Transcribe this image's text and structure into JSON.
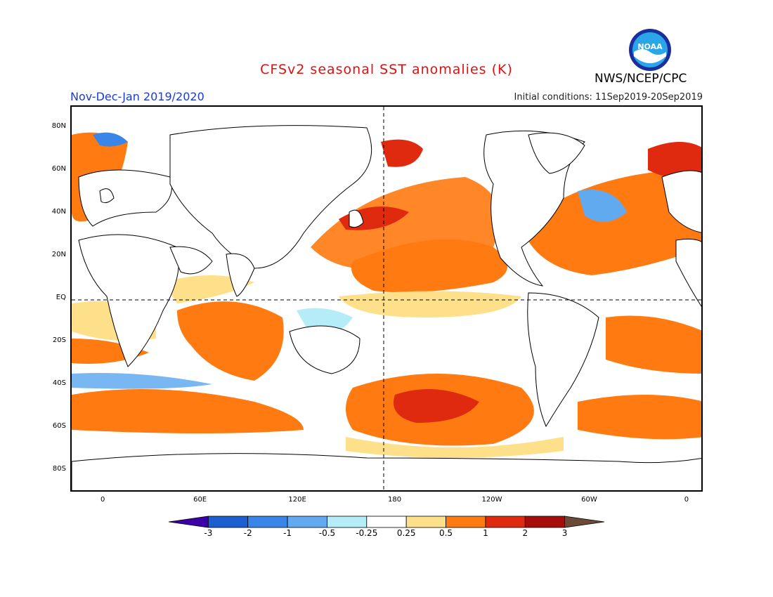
{
  "title": "CFSv2 seasonal SST anomalies (K)",
  "season": "Nov-Dec-Jan 2019/2020",
  "initial_conditions": "Initial conditions: 11Sep2019-20Sep2019",
  "agency": "NWS/NCEP/CPC",
  "logo_text": "NOAA",
  "lat_ticks": [
    {
      "label": "80N",
      "lat": 80
    },
    {
      "label": "60N",
      "lat": 60
    },
    {
      "label": "40N",
      "lat": 40
    },
    {
      "label": "20N",
      "lat": 20
    },
    {
      "label": "EQ",
      "lat": 0
    },
    {
      "label": "20S",
      "lat": -20
    },
    {
      "label": "40S",
      "lat": -40
    },
    {
      "label": "60S",
      "lat": -60
    },
    {
      "label": "80S",
      "lat": -80
    }
  ],
  "lon_ticks": [
    {
      "label": "0",
      "lon": 0
    },
    {
      "label": "60E",
      "lon": 60
    },
    {
      "label": "120E",
      "lon": 120
    },
    {
      "label": "180",
      "lon": 180
    },
    {
      "label": "120W",
      "lon": 240
    },
    {
      "label": "60W",
      "lon": 300
    },
    {
      "label": "0",
      "lon": 360
    }
  ],
  "colorbar": {
    "labels": [
      "-3",
      "-2",
      "-1",
      "-0.5",
      "-0.25",
      "0.25",
      "0.5",
      "1",
      "2",
      "3"
    ],
    "colors": [
      "#3c00a8",
      "#1c5fd0",
      "#3a86e8",
      "#62aaf0",
      "#b4ecf8",
      "#ffffff",
      "#ffe08a",
      "#ff7a10",
      "#e02a10",
      "#a50d08",
      "#6b4a3a"
    ]
  }
}
